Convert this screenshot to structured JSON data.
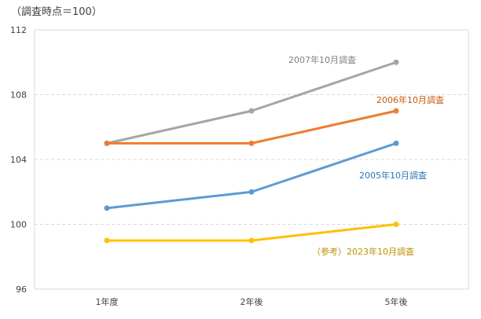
{
  "chart_data": {
    "type": "line",
    "title": "",
    "unit_label": "（調査時点＝100）",
    "xlabel": "",
    "ylabel": "",
    "categories": [
      "1年度",
      "2年後",
      "5年後"
    ],
    "ylim": [
      96,
      112
    ],
    "yticks": [
      96,
      100,
      104,
      108,
      112
    ],
    "grid": "horizontal-dashed",
    "legend": "none",
    "series": [
      {
        "name": "2007年10月調査",
        "values": [
          105,
          107,
          110
        ],
        "color": "#a5a5a5",
        "label_color": "#7f7f7f"
      },
      {
        "name": "2006年10月調査",
        "values": [
          105,
          105,
          107
        ],
        "color": "#ed7d31",
        "label_color": "#c55a11"
      },
      {
        "name": "2005年10月調査",
        "values": [
          101,
          102,
          105
        ],
        "color": "#5b9bd5",
        "label_color": "#2e75b6"
      },
      {
        "name": "（参考）2023年10月調査",
        "values": [
          99,
          99,
          100
        ],
        "color": "#ffc000",
        "label_color": "#bf9000"
      }
    ]
  }
}
